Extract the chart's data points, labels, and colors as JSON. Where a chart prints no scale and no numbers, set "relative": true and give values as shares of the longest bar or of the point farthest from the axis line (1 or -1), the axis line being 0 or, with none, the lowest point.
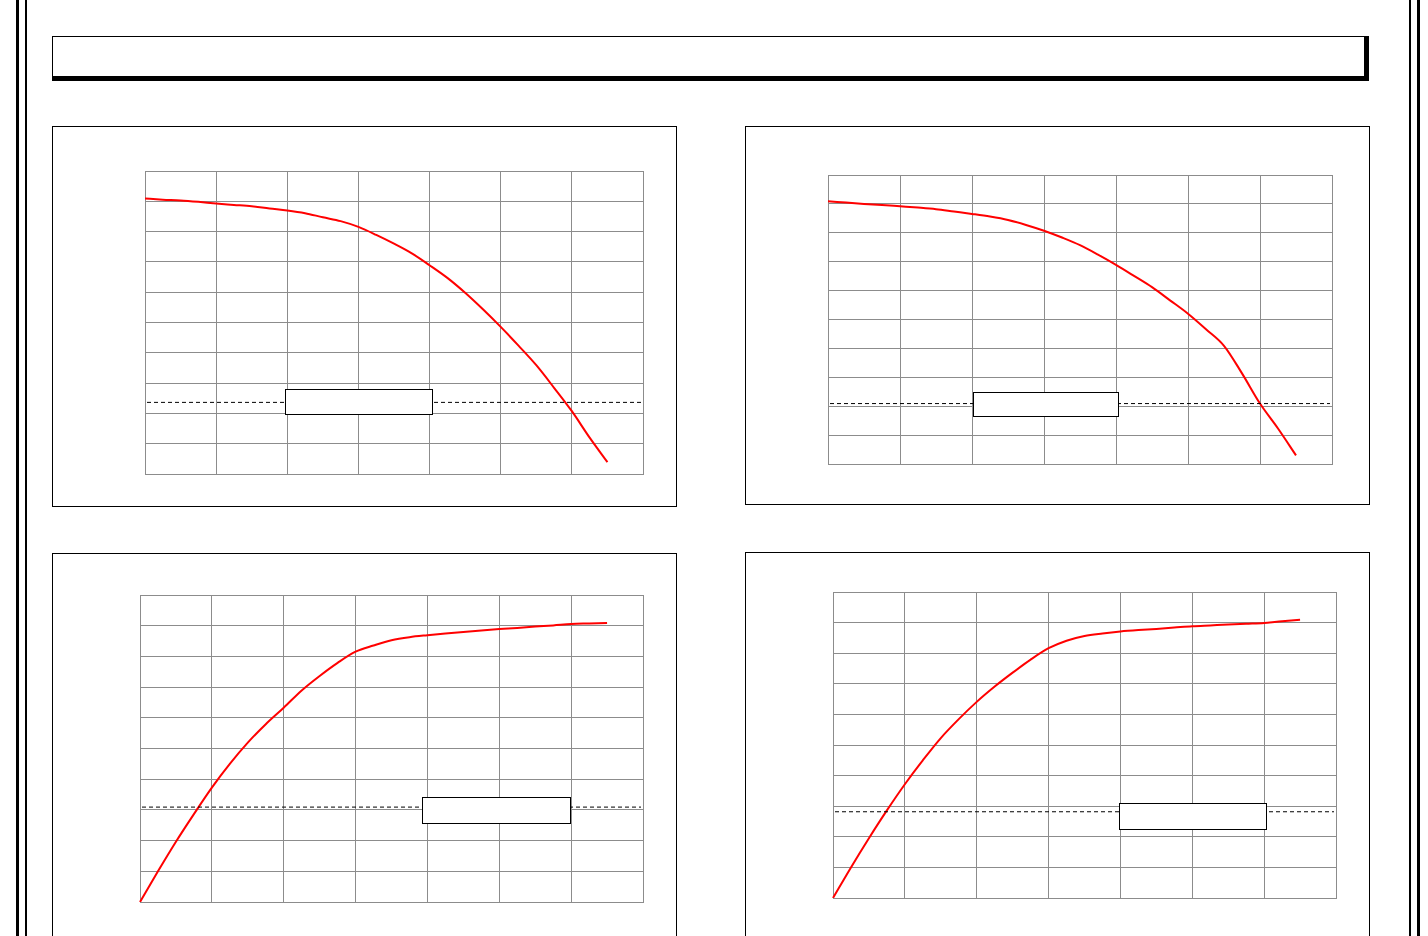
{
  "chart_data": [
    {
      "type": "line",
      "relative": true,
      "grid": true,
      "marker": "none",
      "line_style": "solid",
      "categories": [
        null,
        null,
        null,
        null,
        null,
        null,
        null,
        null,
        null,
        null,
        null,
        null,
        null,
        null,
        null,
        null,
        null,
        null,
        null,
        null,
        null,
        null,
        null,
        null,
        null,
        null,
        null,
        null,
        null
      ],
      "series": [
        {
          "color": "#ff0000",
          "values": [
            1.0,
            0.996,
            0.993,
            0.988,
            0.982,
            0.977,
            0.972,
            0.964,
            0.957,
            0.947,
            0.932,
            0.918,
            0.897,
            0.868,
            0.836,
            0.801,
            0.758,
            0.712,
            0.658,
            0.598,
            0.534,
            0.466,
            0.395,
            0.313,
            0.228,
            0.132,
            0.043,
            null,
            null
          ]
        }
      ],
      "ref_lines": [
        {
          "axis": "y",
          "value": 0.26,
          "color": "#000000",
          "line_style": "dashed"
        }
      ]
    },
    {
      "type": "line",
      "relative": true,
      "grid": true,
      "marker": "none",
      "line_style": "solid",
      "categories": [
        null,
        null,
        null,
        null,
        null,
        null,
        null,
        null,
        null,
        null,
        null,
        null,
        null,
        null,
        null,
        null,
        null,
        null,
        null,
        null,
        null,
        null,
        null,
        null,
        null,
        null,
        null,
        null,
        null
      ],
      "series": [
        {
          "color": "#ff0000",
          "values": [
            1.0,
            0.995,
            0.99,
            0.986,
            0.981,
            0.976,
            0.97,
            0.961,
            0.952,
            0.942,
            0.929,
            0.91,
            0.888,
            0.862,
            0.833,
            0.797,
            0.758,
            0.716,
            0.673,
            0.623,
            0.572,
            0.513,
            0.45,
            0.345,
            0.23,
            0.135,
            0.033,
            null,
            null
          ]
        }
      ],
      "ref_lines": [
        {
          "axis": "y",
          "value": 0.23,
          "color": "#000000",
          "line_style": "dashed"
        }
      ]
    },
    {
      "type": "line",
      "relative": true,
      "grid": true,
      "marker": "none",
      "line_style": "solid",
      "categories": [
        null,
        null,
        null,
        null,
        null,
        null,
        null,
        null,
        null,
        null,
        null,
        null,
        null,
        null,
        null,
        null,
        null,
        null,
        null,
        null,
        null,
        null,
        null,
        null,
        null,
        null,
        null,
        null,
        null
      ],
      "series": [
        {
          "color": "#ff0000",
          "values": [
            0,
            0.11,
            0.216,
            0.315,
            0.41,
            0.495,
            0.571,
            0.637,
            0.696,
            0.758,
            0.81,
            0.857,
            0.897,
            0.919,
            0.938,
            0.949,
            0.956,
            0.962,
            0.967,
            0.973,
            0.978,
            0.982,
            0.987,
            0.991,
            0.996,
            0.998,
            1.0,
            null,
            null
          ]
        }
      ],
      "ref_lines": [
        {
          "axis": "y",
          "value": 0.34,
          "color": "#000000",
          "line_style": "dashed"
        }
      ]
    },
    {
      "type": "line",
      "relative": true,
      "grid": true,
      "marker": "none",
      "line_style": "solid",
      "categories": [
        null,
        null,
        null,
        null,
        null,
        null,
        null,
        null,
        null,
        null,
        null,
        null,
        null,
        null,
        null,
        null,
        null,
        null,
        null,
        null,
        null,
        null,
        null,
        null,
        null,
        null,
        null,
        null,
        null
      ],
      "series": [
        {
          "color": "#ff0000",
          "values": [
            0,
            0.11,
            0.215,
            0.315,
            0.409,
            0.495,
            0.575,
            0.643,
            0.705,
            0.76,
            0.81,
            0.857,
            0.898,
            0.925,
            0.942,
            0.951,
            0.958,
            0.963,
            0.967,
            0.972,
            0.977,
            0.98,
            0.983,
            0.986,
            0.989,
            0.995,
            1.0,
            null,
            null
          ]
        }
      ],
      "ref_lines": [
        {
          "axis": "y",
          "value": 0.31,
          "color": "#000000",
          "line_style": "dashed"
        }
      ]
    }
  ]
}
